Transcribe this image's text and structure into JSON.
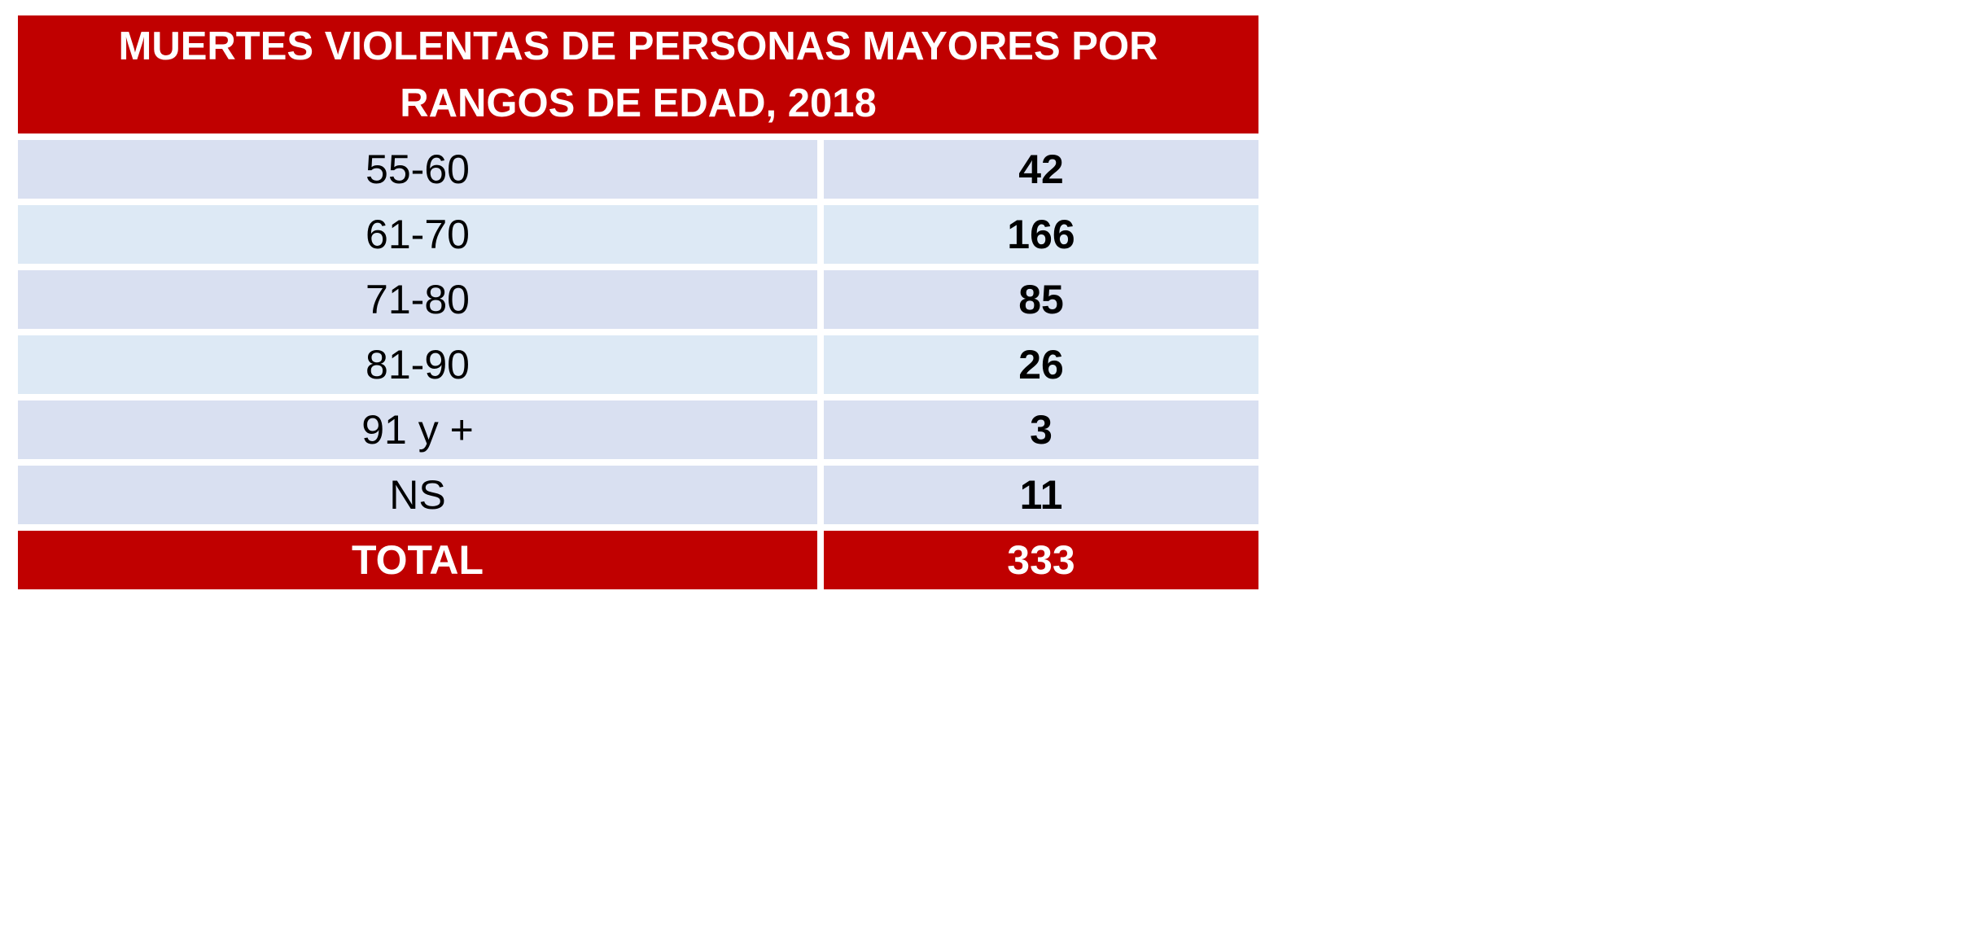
{
  "table": {
    "title": "MUERTES VIOLENTAS DE PERSONAS MAYORES POR RANGOS DE EDAD, 2018",
    "rows": [
      {
        "label": "55-60",
        "value": "42"
      },
      {
        "label": "61-70",
        "value": "166"
      },
      {
        "label": "71-80",
        "value": "85"
      },
      {
        "label": "81-90",
        "value": "26"
      },
      {
        "label": "91 y +",
        "value": "3"
      },
      {
        "label": "NS",
        "value": "11"
      }
    ],
    "total": {
      "label": "TOTAL",
      "value": "333"
    }
  },
  "colors": {
    "header_red": "#c00000",
    "row_lavender": "#d9e0f1",
    "row_light_blue": "#dde9f5",
    "header_text": "#ffffff"
  }
}
